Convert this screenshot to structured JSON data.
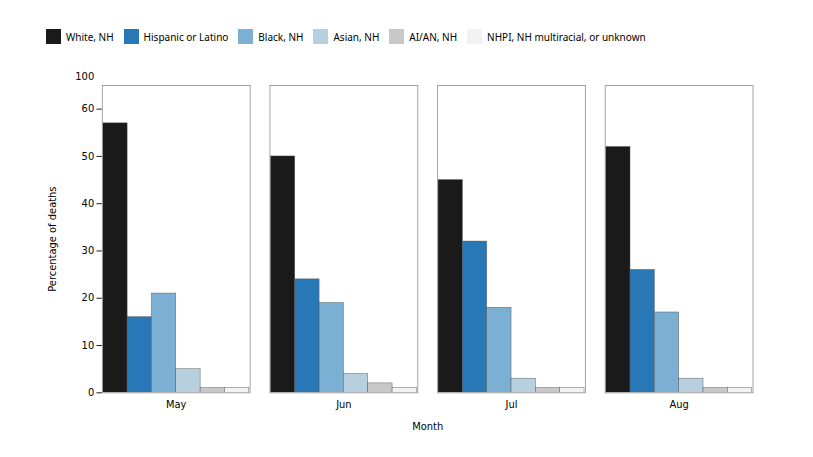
{
  "chart_data": {
    "type": "bar",
    "x_label": "Month",
    "y_label": "Percentage of deaths",
    "categories": [
      "May",
      "Jun",
      "Jul",
      "Aug"
    ],
    "series": [
      {
        "name": "White, NH",
        "color": "#1a1a1a",
        "values": [
          57,
          50,
          45,
          52
        ]
      },
      {
        "name": "Hispanic or Latino",
        "color": "#2878b8",
        "values": [
          16,
          24,
          32,
          26
        ]
      },
      {
        "name": "Black, NH",
        "color": "#7bafd4",
        "values": [
          21,
          19,
          18,
          17
        ]
      },
      {
        "name": "Asian, NH",
        "color": "#b8cfe0",
        "values": [
          5,
          4,
          3,
          3
        ]
      },
      {
        "name": "AI/AN, NH",
        "color": "#c8c8c8",
        "values": [
          1,
          2,
          1,
          1
        ]
      },
      {
        "name": "NHPI, NH multiracial, or unknown",
        "color": "#f2f2f2",
        "values": [
          1,
          1,
          1,
          1
        ]
      }
    ],
    "ylim": [
      0,
      65
    ],
    "yticks": [
      0,
      10,
      20,
      30,
      40,
      50,
      60
    ],
    "annotations": [
      {
        "text": "100"
      }
    ],
    "grid": false,
    "legend": "top"
  }
}
